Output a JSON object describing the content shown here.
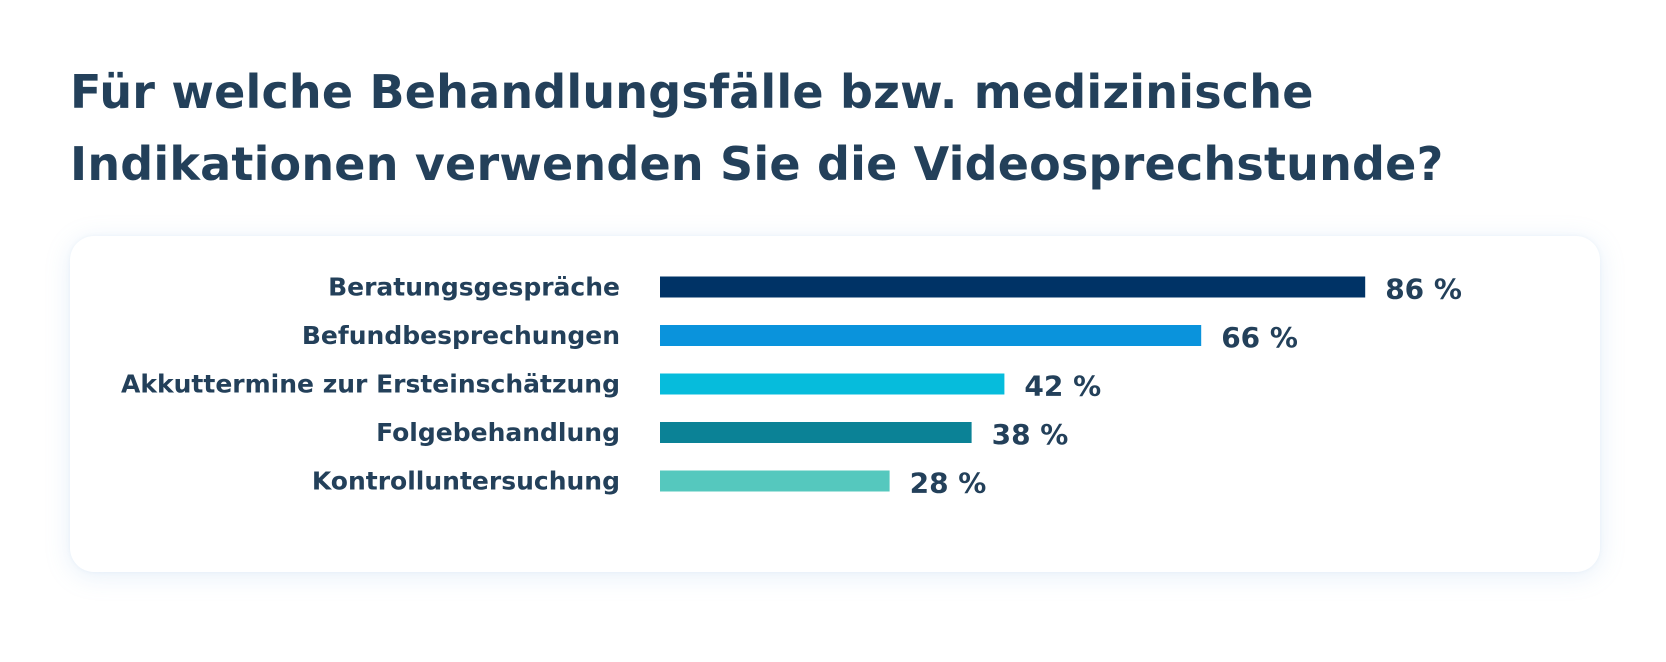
{
  "title": "Für welche Behandlungsfälle bzw. medizinische Indikationen verwenden Sie die Videosprechstunde?",
  "chart_data": {
    "type": "bar",
    "orientation": "horizontal",
    "title": "Für welche Behandlungsfälle bzw. medizinische Indikationen verwenden Sie die Videosprechstunde?",
    "categories": [
      "Beratungsgespräche",
      "Befundbesprechungen",
      "Akkuttermine zur Ersteinschätzung",
      "Folgebehandlung",
      "Kontrolluntersuchung"
    ],
    "values": [
      86,
      66,
      42,
      38,
      28
    ],
    "value_labels": [
      "86 %",
      "66 %",
      "42 %",
      "38 %",
      "28 %"
    ],
    "colors": [
      "#003366",
      "#0a93dc",
      "#06bcdc",
      "#0b8296",
      "#55c8be"
    ],
    "unit": "%",
    "xlim": [
      0,
      100
    ],
    "grid": false,
    "legend": "none"
  }
}
